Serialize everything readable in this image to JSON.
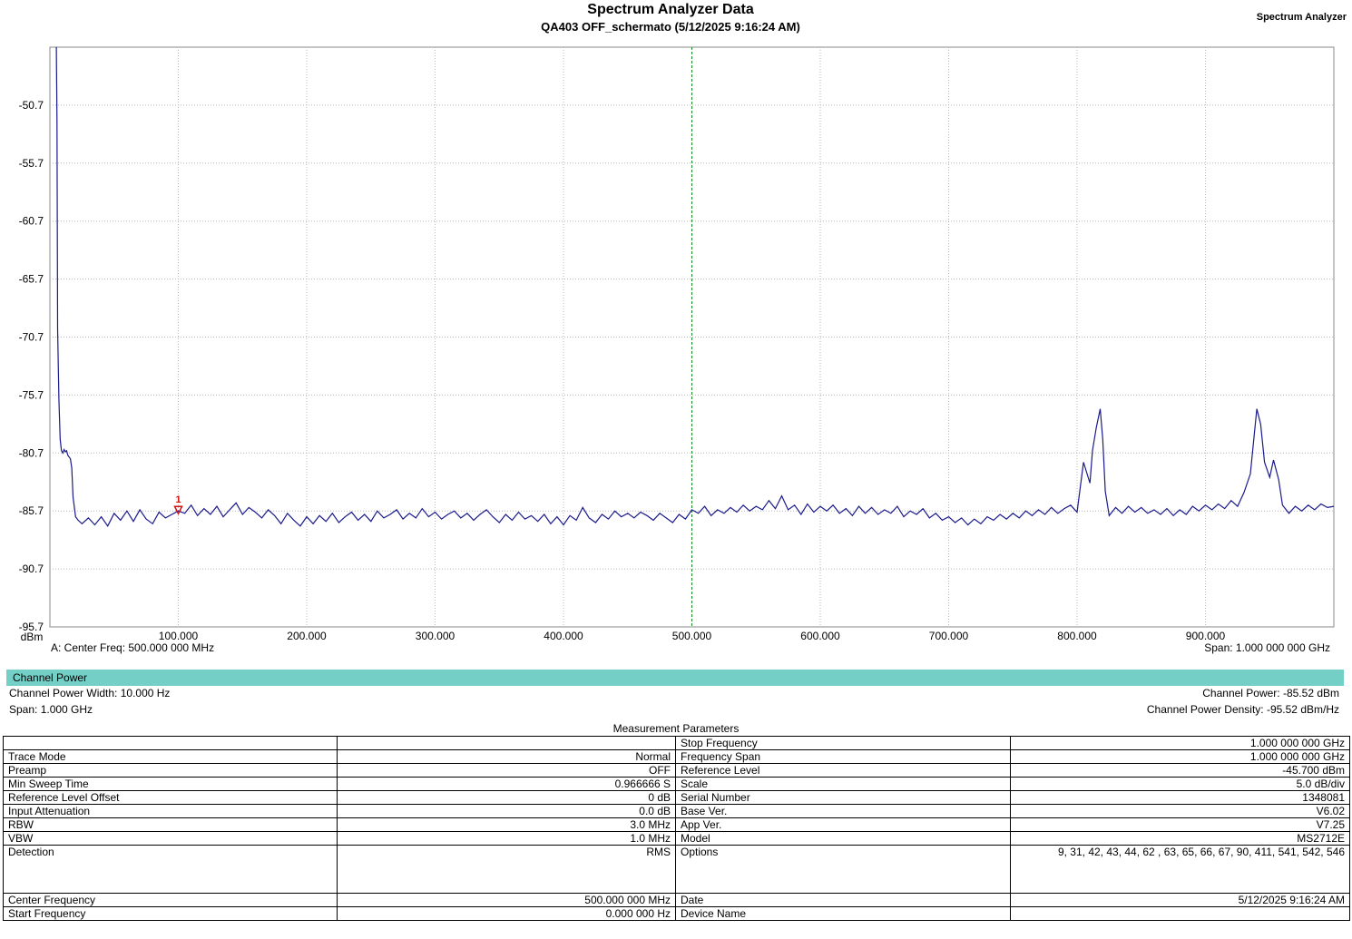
{
  "title": "Spectrum Analyzer Data",
  "subtitle": "QA403 OFF_schermato (5/12/2025 9:16:24 AM)",
  "brand": "Spectrum Analyzer",
  "chart_data": {
    "type": "line",
    "xlabel": "",
    "ylabel": "dBm",
    "xlim": [
      0,
      1000
    ],
    "ylim": [
      -95.7,
      -45.7
    ],
    "x_ticks": [
      "100.000",
      "200.000",
      "300.000",
      "400.000",
      "500.000",
      "600.000",
      "700.000",
      "800.000",
      "900.000"
    ],
    "y_ticks": [
      "-50.7",
      "-55.7",
      "-60.7",
      "-65.7",
      "-70.7",
      "-75.7",
      "-80.7",
      "-85.7",
      "-90.7",
      "-95.7"
    ],
    "grid": true,
    "center_line_x": 500,
    "marker": {
      "label": "1",
      "x": 100,
      "y": -85.7
    },
    "series": [
      {
        "color": "#1a1a8c",
        "points": [
          [
            5,
            -45.7
          ],
          [
            5.5,
            -52
          ],
          [
            6,
            -70
          ],
          [
            7,
            -76
          ],
          [
            8,
            -79.5
          ],
          [
            9,
            -80.5
          ],
          [
            10,
            -80.7
          ],
          [
            11,
            -80.4
          ],
          [
            12,
            -80.6
          ],
          [
            13,
            -80.5
          ],
          [
            14,
            -80.9
          ],
          [
            16,
            -81.2
          ],
          [
            17,
            -82
          ],
          [
            18,
            -84.5
          ],
          [
            20,
            -86.2
          ],
          [
            22,
            -86.5
          ],
          [
            25,
            -86.8
          ],
          [
            30,
            -86.3
          ],
          [
            35,
            -86.9
          ],
          [
            40,
            -86.2
          ],
          [
            45,
            -87
          ],
          [
            50,
            -85.9
          ],
          [
            55,
            -86.5
          ],
          [
            60,
            -85.7
          ],
          [
            65,
            -86.6
          ],
          [
            70,
            -85.6
          ],
          [
            75,
            -86.4
          ],
          [
            80,
            -86.8
          ],
          [
            85,
            -85.8
          ],
          [
            90,
            -86.3
          ],
          [
            95,
            -86
          ],
          [
            100,
            -85.7
          ],
          [
            105,
            -85.9
          ],
          [
            110,
            -85.2
          ],
          [
            115,
            -86.1
          ],
          [
            120,
            -85.5
          ],
          [
            125,
            -86
          ],
          [
            130,
            -85.3
          ],
          [
            135,
            -86.2
          ],
          [
            140,
            -85.6
          ],
          [
            145,
            -85
          ],
          [
            150,
            -86
          ],
          [
            155,
            -85.4
          ],
          [
            160,
            -85.8
          ],
          [
            165,
            -86.3
          ],
          [
            170,
            -85.6
          ],
          [
            175,
            -86.1
          ],
          [
            180,
            -86.8
          ],
          [
            185,
            -85.9
          ],
          [
            190,
            -86.5
          ],
          [
            195,
            -87
          ],
          [
            200,
            -86.2
          ],
          [
            205,
            -86.8
          ],
          [
            210,
            -86.1
          ],
          [
            215,
            -86.6
          ],
          [
            220,
            -85.9
          ],
          [
            225,
            -86.7
          ],
          [
            230,
            -86.2
          ],
          [
            235,
            -85.8
          ],
          [
            240,
            -86.5
          ],
          [
            245,
            -86
          ],
          [
            250,
            -86.6
          ],
          [
            255,
            -85.7
          ],
          [
            260,
            -86.3
          ],
          [
            265,
            -86
          ],
          [
            270,
            -85.6
          ],
          [
            275,
            -86.4
          ],
          [
            280,
            -85.9
          ],
          [
            285,
            -86.3
          ],
          [
            290,
            -85.5
          ],
          [
            295,
            -86.2
          ],
          [
            300,
            -85.8
          ],
          [
            305,
            -86.4
          ],
          [
            310,
            -86
          ],
          [
            315,
            -85.7
          ],
          [
            320,
            -86.3
          ],
          [
            325,
            -85.9
          ],
          [
            330,
            -86.5
          ],
          [
            335,
            -86
          ],
          [
            340,
            -85.6
          ],
          [
            345,
            -86.2
          ],
          [
            350,
            -86.7
          ],
          [
            355,
            -86
          ],
          [
            360,
            -86.5
          ],
          [
            365,
            -85.8
          ],
          [
            370,
            -86.4
          ],
          [
            375,
            -86.1
          ],
          [
            380,
            -86.6
          ],
          [
            385,
            -86
          ],
          [
            390,
            -86.8
          ],
          [
            395,
            -86.2
          ],
          [
            400,
            -86.9
          ],
          [
            405,
            -86.1
          ],
          [
            410,
            -86.5
          ],
          [
            415,
            -85.4
          ],
          [
            420,
            -86.3
          ],
          [
            425,
            -86.7
          ],
          [
            430,
            -86
          ],
          [
            435,
            -86.4
          ],
          [
            440,
            -85.7
          ],
          [
            445,
            -86.2
          ],
          [
            450,
            -85.9
          ],
          [
            455,
            -86.3
          ],
          [
            460,
            -85.8
          ],
          [
            465,
            -86.1
          ],
          [
            470,
            -86.5
          ],
          [
            475,
            -85.9
          ],
          [
            480,
            -86.3
          ],
          [
            485,
            -86.7
          ],
          [
            490,
            -86
          ],
          [
            495,
            -86.4
          ],
          [
            500,
            -85.6
          ],
          [
            505,
            -85.9
          ],
          [
            510,
            -85.3
          ],
          [
            515,
            -86.1
          ],
          [
            520,
            -85.6
          ],
          [
            525,
            -85.9
          ],
          [
            530,
            -85.4
          ],
          [
            535,
            -85.8
          ],
          [
            540,
            -85.2
          ],
          [
            545,
            -85.7
          ],
          [
            550,
            -85.3
          ],
          [
            555,
            -85.6
          ],
          [
            560,
            -84.8
          ],
          [
            565,
            -85.5
          ],
          [
            570,
            -84.4
          ],
          [
            575,
            -85.6
          ],
          [
            580,
            -85.2
          ],
          [
            585,
            -86
          ],
          [
            590,
            -85.1
          ],
          [
            595,
            -85.8
          ],
          [
            600,
            -85.3
          ],
          [
            605,
            -85.7
          ],
          [
            610,
            -85.2
          ],
          [
            615,
            -85.9
          ],
          [
            620,
            -85.5
          ],
          [
            625,
            -86.1
          ],
          [
            630,
            -85.3
          ],
          [
            635,
            -85.9
          ],
          [
            640,
            -85.4
          ],
          [
            645,
            -86
          ],
          [
            650,
            -85.6
          ],
          [
            655,
            -85.9
          ],
          [
            660,
            -85.3
          ],
          [
            665,
            -86.2
          ],
          [
            670,
            -85.7
          ],
          [
            675,
            -86
          ],
          [
            680,
            -85.5
          ],
          [
            685,
            -86.3
          ],
          [
            690,
            -85.9
          ],
          [
            695,
            -86.5
          ],
          [
            700,
            -86.2
          ],
          [
            705,
            -86.7
          ],
          [
            710,
            -86.3
          ],
          [
            715,
            -86.9
          ],
          [
            720,
            -86.4
          ],
          [
            725,
            -86.8
          ],
          [
            730,
            -86.2
          ],
          [
            735,
            -86.5
          ],
          [
            740,
            -86
          ],
          [
            745,
            -86.4
          ],
          [
            750,
            -85.9
          ],
          [
            755,
            -86.3
          ],
          [
            760,
            -85.7
          ],
          [
            765,
            -86.1
          ],
          [
            770,
            -85.6
          ],
          [
            775,
            -86
          ],
          [
            780,
            -85.4
          ],
          [
            785,
            -85.9
          ],
          [
            790,
            -85.5
          ],
          [
            795,
            -85.2
          ],
          [
            800,
            -85.8
          ],
          [
            805,
            -81.5
          ],
          [
            810,
            -83.3
          ],
          [
            812,
            -80.5
          ],
          [
            815,
            -78.5
          ],
          [
            818,
            -76.9
          ],
          [
            820,
            -79.5
          ],
          [
            822,
            -84
          ],
          [
            825,
            -86.1
          ],
          [
            830,
            -85.4
          ],
          [
            835,
            -85.9
          ],
          [
            840,
            -85.3
          ],
          [
            845,
            -85.8
          ],
          [
            850,
            -85.4
          ],
          [
            855,
            -85.9
          ],
          [
            860,
            -85.6
          ],
          [
            865,
            -86
          ],
          [
            870,
            -85.5
          ],
          [
            875,
            -86.1
          ],
          [
            880,
            -85.6
          ],
          [
            885,
            -86
          ],
          [
            890,
            -85.3
          ],
          [
            895,
            -85.7
          ],
          [
            900,
            -85.2
          ],
          [
            905,
            -85.6
          ],
          [
            910,
            -85.1
          ],
          [
            915,
            -85.5
          ],
          [
            920,
            -84.8
          ],
          [
            925,
            -85.3
          ],
          [
            930,
            -84.1
          ],
          [
            935,
            -82.5
          ],
          [
            940,
            -76.9
          ],
          [
            943,
            -78.2
          ],
          [
            946,
            -81.5
          ],
          [
            950,
            -82.8
          ],
          [
            953,
            -81.3
          ],
          [
            957,
            -83
          ],
          [
            960,
            -85.2
          ],
          [
            965,
            -85.9
          ],
          [
            970,
            -85.3
          ],
          [
            975,
            -85.7
          ],
          [
            980,
            -85.2
          ],
          [
            985,
            -85.6
          ],
          [
            990,
            -85.1
          ],
          [
            995,
            -85.4
          ],
          [
            1000,
            -85.3
          ]
        ]
      }
    ]
  },
  "footer": {
    "left": "A: Center Freq: 500.000 000 MHz",
    "right": "Span: 1.000 000 000 GHz"
  },
  "channel_power": {
    "header": "Channel Power",
    "width_label": "Channel Power Width: 10.000 Hz",
    "span_label": "Span: 1.000 GHz",
    "power": "Channel Power: -85.52 dBm",
    "density": "Channel Power Density: -95.52 dBm/Hz"
  },
  "params": {
    "title": "Measurement Parameters",
    "rows": [
      [
        "",
        "",
        "Stop Frequency",
        "1.000 000 000 GHz"
      ],
      [
        "Trace Mode",
        "Normal",
        "Frequency Span",
        "1.000 000 000 GHz"
      ],
      [
        "Preamp",
        "OFF",
        "Reference Level",
        "-45.700  dBm"
      ],
      [
        "Min Sweep Time",
        "0.966666 S",
        "Scale",
        "5.0  dB/div"
      ],
      [
        "Reference Level Offset",
        "0 dB",
        "Serial Number",
        "1348081"
      ],
      [
        "Input Attenuation",
        "0.0 dB",
        "Base Ver.",
        "V6.02"
      ],
      [
        "RBW",
        "3.0 MHz",
        "App Ver.",
        "V7.25"
      ],
      [
        "VBW",
        "1.0 MHz",
        "Model",
        "MS2712E"
      ],
      [
        "Detection",
        "RMS",
        "Options",
        "9, 31, 42, 43, 44, 62 , 63, 65, 66, 67, 90, 411, 541, 542, 546"
      ],
      [
        "Center Frequency",
        "500.000 000 MHz",
        "Date",
        "5/12/2025 9:16:24 AM"
      ],
      [
        "Start Frequency",
        "0.000 000 Hz",
        "Device Name",
        ""
      ]
    ]
  }
}
